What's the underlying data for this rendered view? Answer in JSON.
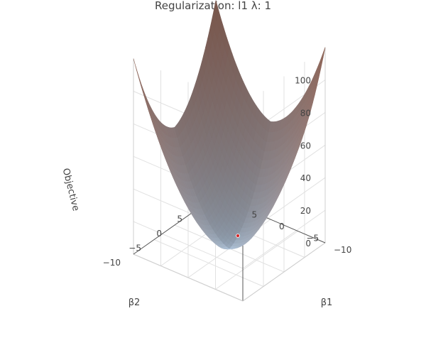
{
  "chart_data": {
    "type": "surface",
    "title": "Regularization: l1 λ: 1",
    "axes": {
      "x": {
        "label": "β1",
        "range": [
          -10,
          10
        ],
        "ticks": [
          -10,
          -5,
          0,
          5
        ],
        "tick_labels": [
          "−10",
          "−5",
          "0",
          "5"
        ]
      },
      "y": {
        "label": "β2",
        "range": [
          -10,
          10
        ],
        "ticks": [
          -10,
          -5,
          0,
          5
        ],
        "tick_labels": [
          "−10",
          "−5",
          "0",
          "5"
        ]
      },
      "z": {
        "label": "Objective",
        "range": [
          0,
          120
        ],
        "ticks": [
          0,
          20,
          40,
          60,
          80,
          100
        ],
        "tick_labels": [
          "0",
          "20",
          "40",
          "60",
          "80",
          "100"
        ]
      }
    },
    "surface": {
      "description_formula": "objective = 0.5*(β1^2 + β2^2) + λ*(|β1| + |β2|)",
      "lambda": 1,
      "colorscale": [
        "#c3dbf3",
        "#b98372"
      ]
    },
    "minimum_marker": {
      "x": 0,
      "y": 0,
      "z": 0,
      "color": "#d62728"
    },
    "grid": true
  }
}
